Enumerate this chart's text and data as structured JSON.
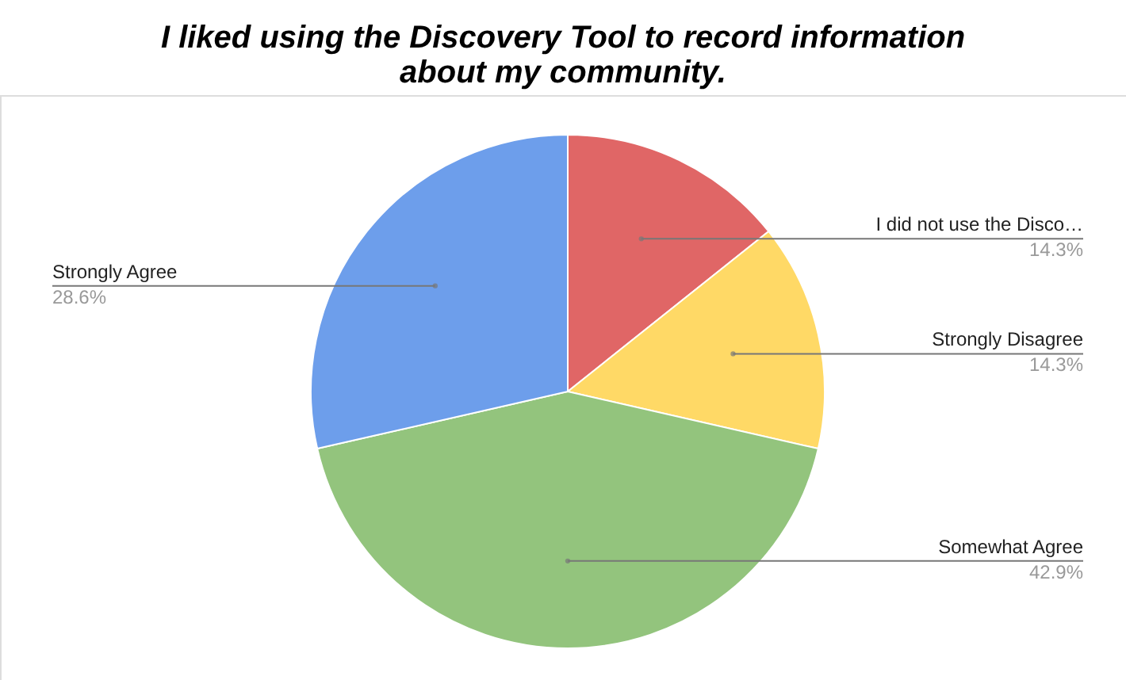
{
  "chart_data": {
    "type": "pie",
    "title": "I liked using the Discovery Tool to record information about my community.",
    "categories": [
      "I did not use the Disco…",
      "Strongly Disagree",
      "Somewhat Agree",
      "Strongly Agree"
    ],
    "values": [
      14.3,
      14.3,
      42.9,
      28.6
    ],
    "colors": [
      "#e06666",
      "#ffd966",
      "#93c47d",
      "#6d9eeb"
    ],
    "value_labels": [
      "14.3%",
      "14.3%",
      "42.9%",
      "28.6%"
    ]
  }
}
